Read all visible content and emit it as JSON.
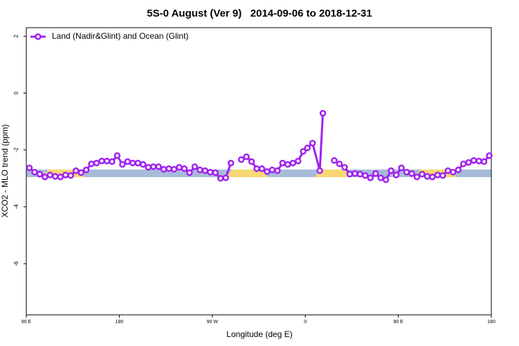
{
  "chart_data": {
    "type": "line",
    "title": "5S-0 August (Ver 9)   2014-09-06 to 2018-12-31",
    "x_label": "Longitude (deg E)",
    "y_label": "XCO2 - MLO trend (ppm)",
    "xlim": [
      90,
      540
    ],
    "ylim": [
      -7.8,
      2.3
    ],
    "xticks": [
      {
        "value": 90,
        "label": "90 E"
      },
      {
        "value": 180,
        "label": "180"
      },
      {
        "value": 270,
        "label": "90 W"
      },
      {
        "value": 360,
        "label": "0"
      },
      {
        "value": 450,
        "label": "90 E"
      },
      {
        "value": 540,
        "label": "180"
      }
    ],
    "yticks": [
      2,
      0,
      -2,
      -4,
      -6
    ],
    "legend": "top-left",
    "x": [
      93,
      98,
      103,
      108,
      113,
      118,
      123,
      128,
      133,
      138,
      143,
      148,
      153,
      158,
      163,
      168,
      173,
      178,
      183,
      188,
      193,
      198,
      203,
      208,
      213,
      218,
      223,
      228,
      233,
      238,
      243,
      248,
      253,
      258,
      263,
      268,
      273,
      278,
      283,
      288,
      293,
      298,
      303,
      308,
      313,
      318,
      323,
      328,
      333,
      338,
      343,
      348,
      353,
      358,
      362,
      367,
      374,
      377,
      383,
      388,
      393,
      398,
      403,
      408,
      413,
      418,
      423,
      428,
      433,
      438,
      443,
      448,
      453,
      458,
      463,
      468,
      473,
      478,
      483,
      488,
      493,
      498,
      503,
      508,
      513,
      518,
      523,
      528,
      533,
      538
    ],
    "series": [
      {
        "name": "Land (Nadir&Glint) and Ocean (Glint)",
        "color": "#a020f0",
        "values": [
          -2.63,
          -2.78,
          -2.85,
          -2.95,
          -2.88,
          -2.93,
          -2.95,
          -2.88,
          -2.9,
          -2.73,
          -2.8,
          -2.7,
          -2.49,
          -2.46,
          -2.39,
          -2.39,
          -2.41,
          -2.2,
          -2.51,
          -2.41,
          -2.46,
          -2.46,
          -2.51,
          -2.61,
          -2.59,
          -2.59,
          -2.68,
          -2.66,
          -2.68,
          -2.61,
          -2.66,
          -2.8,
          -2.59,
          -2.7,
          -2.73,
          -2.78,
          -2.8,
          -3.0,
          -2.98,
          -2.46,
          null,
          -2.34,
          -2.24,
          -2.41,
          -2.66,
          -2.66,
          -2.76,
          -2.7,
          -2.73,
          -2.46,
          -2.51,
          -2.46,
          -2.39,
          -2.05,
          -1.93,
          -1.76,
          -2.73,
          -0.71,
          null,
          -2.37,
          -2.49,
          -2.61,
          -2.85,
          -2.83,
          -2.85,
          -2.9,
          -2.98,
          -2.83,
          -2.98,
          -3.05,
          -2.73,
          -2.88,
          -2.63,
          -2.78,
          -2.83,
          -2.95,
          -2.85,
          -2.93,
          -2.95,
          -2.88,
          -2.9,
          -2.73,
          -2.78,
          -2.7,
          -2.49,
          -2.44,
          -2.37,
          -2.39,
          -2.41,
          -2.2
        ]
      }
    ]
  }
}
